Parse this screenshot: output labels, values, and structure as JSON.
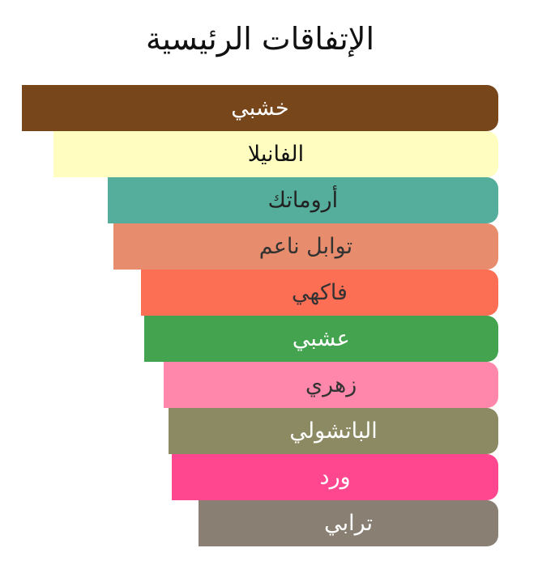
{
  "chart_data": {
    "type": "bar",
    "orientation": "horizontal",
    "title": "الإتفاقات الرئيسية",
    "xlim": [
      0,
      100
    ],
    "grid": false,
    "series": [
      {
        "categories": [
          "خشبي",
          "الفانيلا",
          "أروماتك",
          "توابل ناعم",
          "فاكهي",
          "عشبي",
          "زهري",
          "الباتشولي",
          "ورد",
          "ترابي"
        ],
        "values": [
          100,
          93.4,
          82,
          80.8,
          75,
          74.4,
          70.2,
          69.2,
          68.5,
          62.9
        ],
        "colors": [
          "#77461A",
          "#FFFEC0",
          "#55AE9C",
          "#E78D6D",
          "#FC6F55",
          "#43A34F",
          "#FF87AB",
          "#8C8A62",
          "#FF4790",
          "#8A7F73"
        ],
        "text_colors": [
          "#FFFFFF",
          "#111111",
          "#222222",
          "#333333",
          "#333333",
          "#FFFFFF",
          "#333333",
          "#FFFFFF",
          "#FFFFFF",
          "#FFFFFF"
        ]
      }
    ]
  }
}
